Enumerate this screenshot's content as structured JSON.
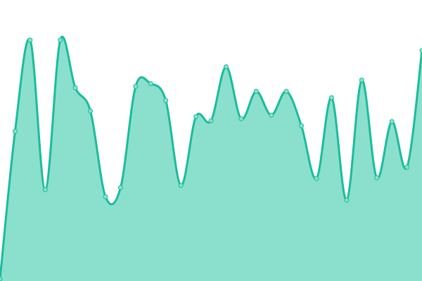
{
  "chart_data": {
    "type": "area",
    "title": "",
    "xlabel": "",
    "ylabel": "",
    "x": [
      0,
      1,
      2,
      3,
      4,
      5,
      6,
      7,
      8,
      9,
      10,
      11,
      12,
      13,
      14,
      15,
      16,
      17,
      18,
      19,
      20,
      21,
      22,
      23,
      24,
      25,
      26,
      27,
      28
    ],
    "values": [
      3,
      213,
      343,
      130,
      343,
      275,
      242,
      120,
      133,
      277,
      281,
      257,
      136,
      234,
      228,
      305,
      231,
      270,
      236,
      270,
      221,
      146,
      261,
      115,
      286,
      147,
      227,
      162,
      328
    ],
    "ylim": [
      0,
      400
    ],
    "grid": false,
    "axes_visible": false,
    "curve": "smooth",
    "markers": true,
    "colors": {
      "line": "#1abc9c",
      "fill": "#8ae0cd",
      "marker_fill": "#8ae0cd",
      "marker_stroke": "#1abc9c"
    }
  }
}
